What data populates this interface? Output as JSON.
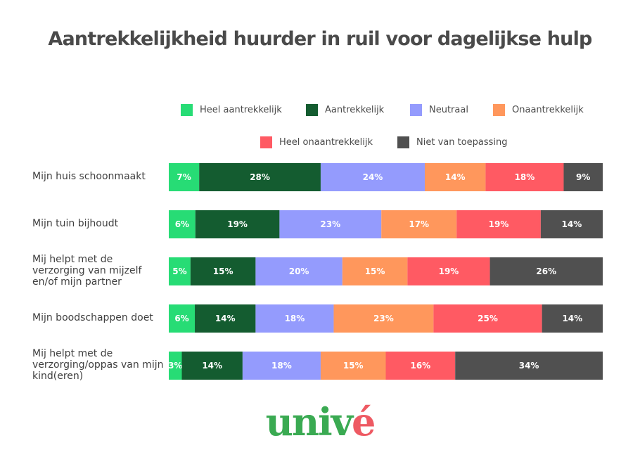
{
  "chart_data": {
    "type": "bar",
    "orientation": "horizontal",
    "stacked": true,
    "title": "Aantrekkelijkheid huurder in ruil voor dagelijkse hulp",
    "categories": [
      "Mijn huis schoonmaakt",
      "Mijn tuin bijhoudt",
      "Mij helpt met de verzorging van mijzelf en/of mijn partner",
      "Mijn boodschappen doet",
      "Mij helpt met de verzorging/oppas van mijn kind(eren)"
    ],
    "series": [
      {
        "name": "Heel aantrekkelijk",
        "color": "#27dc75",
        "values": [
          7,
          6,
          5,
          6,
          3
        ]
      },
      {
        "name": "Aantrekkelijk",
        "color": "#145c30",
        "values": [
          28,
          19,
          15,
          14,
          14
        ]
      },
      {
        "name": "Neutraal",
        "color": "#949bfd",
        "values": [
          24,
          23,
          20,
          18,
          18
        ]
      },
      {
        "name": "Onaantrekkelijk",
        "color": "#ff975c",
        "values": [
          14,
          17,
          15,
          23,
          15
        ]
      },
      {
        "name": "Heel onaantrekkelijk",
        "color": "#ff5a63",
        "values": [
          18,
          19,
          19,
          25,
          16
        ]
      },
      {
        "name": "Niet van toepassing",
        "color": "#505050",
        "values": [
          9,
          14,
          26,
          14,
          34
        ]
      }
    ],
    "value_suffix": "%",
    "legend_position": "top",
    "grid": false
  },
  "logo": {
    "main": "univ",
    "accent": "é"
  }
}
